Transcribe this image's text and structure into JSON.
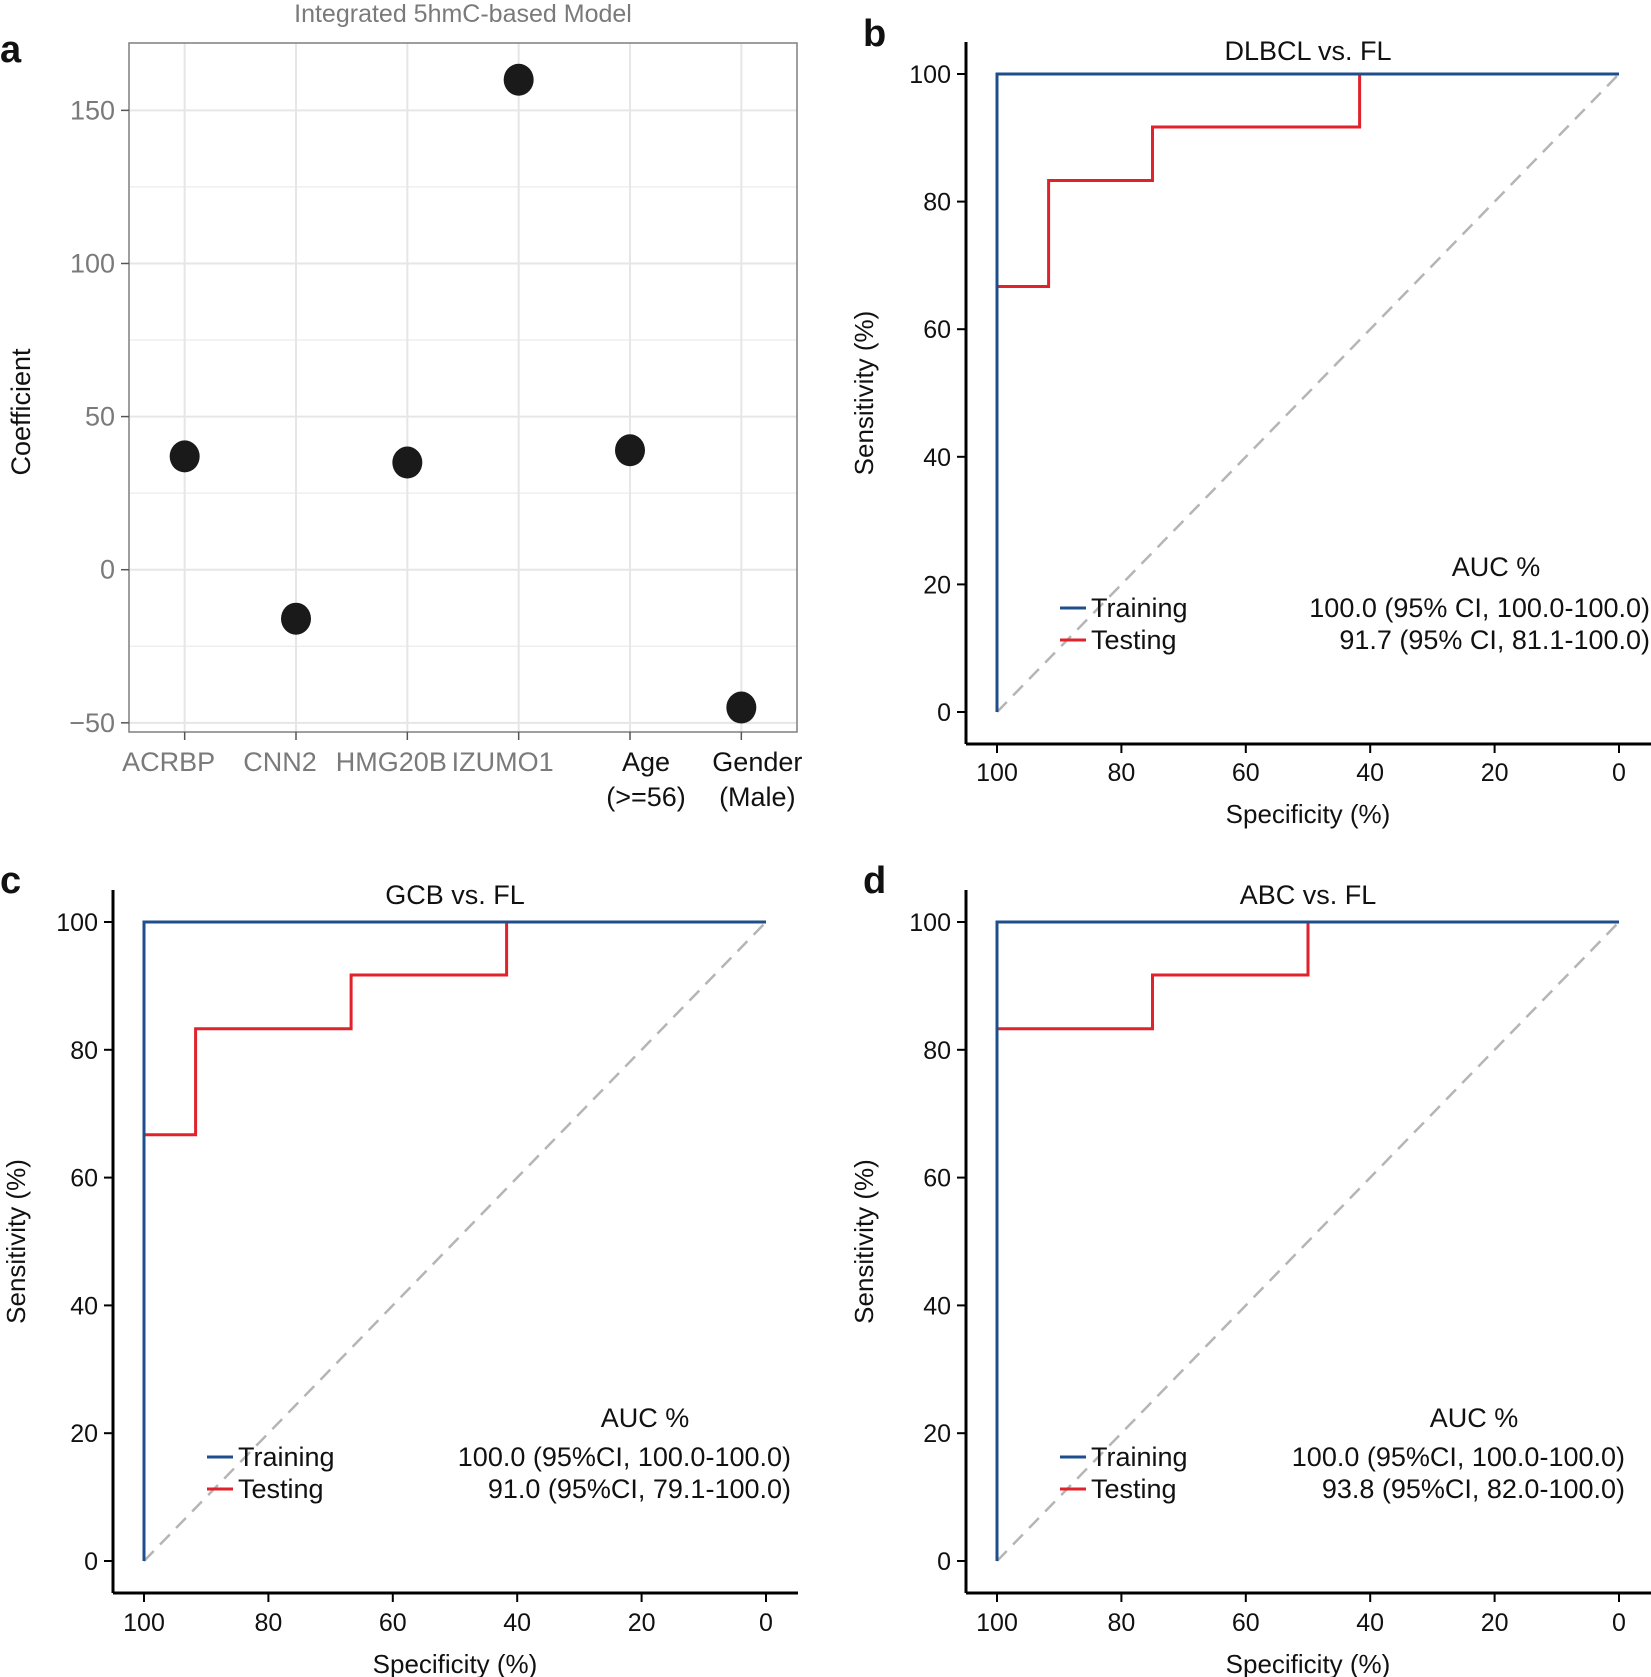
{
  "colors": {
    "training": "#1f4e8c",
    "testing": "#e0222b",
    "diagonal": "#b5b5b5",
    "dot": "#1a1a1a",
    "grid": "#e6e6e6"
  },
  "chart_data": [
    {
      "panel_letter": "a",
      "type": "scatter",
      "title": "Integrated 5hmC-based Model",
      "xlabel": "",
      "ylabel": "Coefficient",
      "ylim": [
        -53,
        172
      ],
      "yticks": [
        -50,
        0,
        50,
        100,
        150
      ],
      "grid": true,
      "categories": [
        {
          "lines": [
            "ACRBP"
          ],
          "color": "gray"
        },
        {
          "lines": [
            "CNN2"
          ],
          "color": "gray"
        },
        {
          "lines": [
            "HMG20B"
          ],
          "color": "gray"
        },
        {
          "lines": [
            "IZUMO1"
          ],
          "color": "gray"
        },
        {
          "lines": [
            "Age",
            "(>=56)"
          ],
          "color": "dark"
        },
        {
          "lines": [
            "Gender",
            "(Male)"
          ],
          "color": "dark"
        }
      ],
      "values": [
        37,
        -16,
        35,
        160,
        39,
        -45
      ]
    },
    {
      "panel_letter": "b",
      "type": "line",
      "title": "DLBCL vs. FL",
      "xlabel": "Specificity (%)",
      "ylabel": "Sensitivity (%)",
      "xlim": [
        100,
        0
      ],
      "ylim": [
        0,
        100
      ],
      "xticks": [
        100,
        80,
        60,
        40,
        20,
        0
      ],
      "yticks": [
        0,
        20,
        40,
        60,
        80,
        100
      ],
      "auc_header": "AUC %",
      "series": [
        {
          "name": "Training",
          "auc": "100.0 (95% CI, 100.0-100.0)",
          "points": [
            [
              100,
              0
            ],
            [
              100,
              100
            ],
            [
              0,
              100
            ]
          ]
        },
        {
          "name": "Testing",
          "auc": "91.7 (95% CI,   81.1-100.0)",
          "points": [
            [
              100,
              0
            ],
            [
              100,
              66.7
            ],
            [
              91.7,
              66.7
            ],
            [
              91.7,
              83.3
            ],
            [
              75,
              83.3
            ],
            [
              75,
              91.7
            ],
            [
              41.7,
              91.7
            ],
            [
              41.7,
              100
            ],
            [
              0,
              100
            ]
          ]
        }
      ]
    },
    {
      "panel_letter": "c",
      "type": "line",
      "title": "GCB vs. FL",
      "xlabel": "Specificity (%)",
      "ylabel": "Sensitivity (%)",
      "xlim": [
        100,
        0
      ],
      "ylim": [
        0,
        100
      ],
      "xticks": [
        100,
        80,
        60,
        40,
        20,
        0
      ],
      "yticks": [
        0,
        20,
        40,
        60,
        80,
        100
      ],
      "auc_header": "AUC %",
      "series": [
        {
          "name": "Training",
          "auc": "100.0 (95%CI, 100.0-100.0)",
          "points": [
            [
              100,
              0
            ],
            [
              100,
              100
            ],
            [
              0,
              100
            ]
          ]
        },
        {
          "name": "Testing",
          "auc": "91.0 (95%CI,   79.1-100.0)",
          "points": [
            [
              100,
              0
            ],
            [
              100,
              66.7
            ],
            [
              91.7,
              66.7
            ],
            [
              91.7,
              83.3
            ],
            [
              66.7,
              83.3
            ],
            [
              66.7,
              91.7
            ],
            [
              41.7,
              91.7
            ],
            [
              41.7,
              100
            ],
            [
              0,
              100
            ]
          ]
        }
      ]
    },
    {
      "panel_letter": "d",
      "type": "line",
      "title": "ABC vs. FL",
      "xlabel": "Specificity (%)",
      "ylabel": "Sensitivity (%)",
      "xlim": [
        100,
        0
      ],
      "ylim": [
        0,
        100
      ],
      "xticks": [
        100,
        80,
        60,
        40,
        20,
        0
      ],
      "yticks": [
        0,
        20,
        40,
        60,
        80,
        100
      ],
      "auc_header": "AUC %",
      "series": [
        {
          "name": "Training",
          "auc": "100.0 (95%CI, 100.0-100.0)",
          "points": [
            [
              100,
              0
            ],
            [
              100,
              100
            ],
            [
              0,
              100
            ]
          ]
        },
        {
          "name": "Testing",
          "auc": "93.8 (95%CI,   82.0-100.0)",
          "points": [
            [
              100,
              0
            ],
            [
              100,
              83.3
            ],
            [
              75,
              83.3
            ],
            [
              75,
              91.7
            ],
            [
              50,
              91.7
            ],
            [
              50,
              100
            ],
            [
              0,
              100
            ]
          ]
        }
      ]
    }
  ]
}
